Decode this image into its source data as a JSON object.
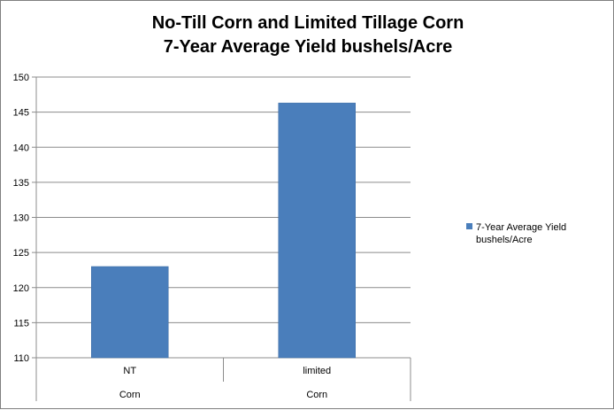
{
  "chart_data": {
    "type": "bar",
    "title_lines": [
      "No-Till Corn and Limited Tillage Corn",
      "7-Year Average Yield bushels/Acre"
    ],
    "categories": [
      "NT",
      "limited"
    ],
    "group_label": "Corn",
    "series": [
      {
        "name": "7-Year Average Yield bushels/Acre",
        "values": [
          123,
          146.3
        ],
        "color": "#4a7ebb"
      }
    ],
    "ylim": [
      110,
      150
    ],
    "yticks": [
      "110",
      "115",
      "120",
      "125",
      "130",
      "135",
      "140",
      "145",
      "150"
    ],
    "grid": true,
    "legend_position": "right",
    "legend_lines": [
      "7-Year Average Yield",
      "bushels/Acre"
    ]
  }
}
